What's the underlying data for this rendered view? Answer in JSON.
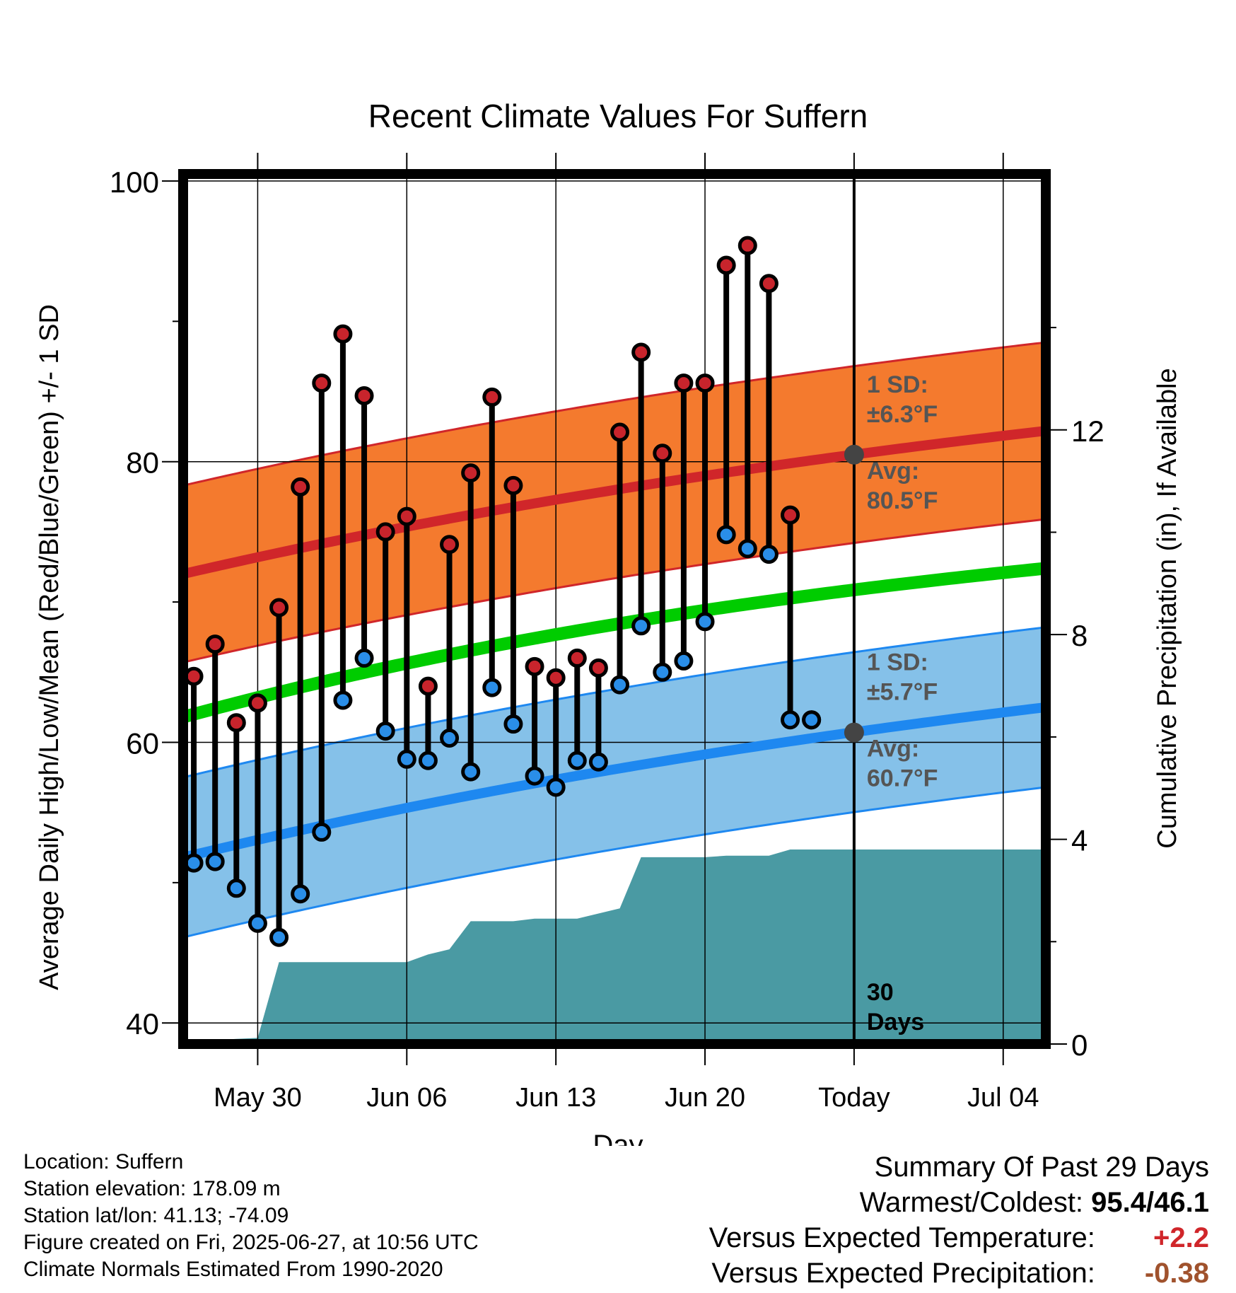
{
  "chart_data": {
    "type": "line",
    "title": "Recent Climate Values For Suffern",
    "xlabel": "Day",
    "ylabel": "Average Daily High/Low/Mean (Red/Blue/Green) +/- 1 SD",
    "y2label": "Cumulative Precipitation (in), If Available",
    "ylim": [
      38.5,
      100.5
    ],
    "y_ticks": [
      40,
      60,
      80,
      100
    ],
    "y2lim": [
      0,
      17
    ],
    "y2_ticks": [
      0,
      4,
      8,
      12
    ],
    "x_tick_labels": [
      "May 30",
      "Jun 06",
      "Jun 13",
      "Jun 20",
      "Today",
      "Jul 04"
    ],
    "x_tick_days": [
      4,
      11,
      18,
      25,
      32,
      39
    ],
    "xlim": [
      0.5,
      41
    ],
    "today_day": 32,
    "grid": true,
    "days_label": "30",
    "days_label2": "Days",
    "highs": [
      64.7,
      67.0,
      61.4,
      62.8,
      69.6,
      78.2,
      85.6,
      89.1,
      84.7,
      75.0,
      76.1,
      64.0,
      74.1,
      79.2,
      84.6,
      78.3,
      65.4,
      64.6,
      66.0,
      65.3,
      82.1,
      87.8,
      80.6,
      85.6,
      85.6,
      94.0,
      95.4,
      92.7,
      76.2,
      61.6
    ],
    "lows": [
      51.4,
      51.5,
      49.6,
      47.1,
      46.1,
      49.2,
      53.6,
      63.0,
      66.0,
      60.8,
      58.8,
      58.7,
      60.3,
      57.9,
      63.9,
      61.3,
      57.6,
      56.8,
      58.7,
      58.6,
      64.1,
      68.3,
      65.0,
      65.8,
      68.6,
      74.8,
      73.8,
      73.4,
      61.6,
      61.6
    ],
    "normal_high": {
      "start": 72.0,
      "today": 80.5,
      "end": 82.2,
      "sd": 6.3
    },
    "normal_low": {
      "start": 51.8,
      "today": 60.7,
      "end": 62.5,
      "sd": 5.7
    },
    "normal_mean": {
      "start": 61.8,
      "today": 70.9,
      "end": 72.4
    },
    "precip_cumulative": {
      "x": [
        1,
        3,
        4,
        5,
        6,
        7,
        8,
        9,
        10,
        11,
        12,
        13,
        14,
        15,
        16,
        17,
        18,
        19,
        20,
        21,
        22,
        23,
        24,
        25,
        26,
        27,
        28,
        29,
        30,
        31,
        32,
        40.9
      ],
      "values": [
        0.05,
        0.1,
        0.12,
        1.6,
        1.6,
        1.6,
        1.6,
        1.6,
        1.6,
        1.6,
        1.75,
        1.85,
        2.4,
        2.4,
        2.4,
        2.45,
        2.45,
        2.45,
        2.55,
        2.65,
        3.65,
        3.65,
        3.65,
        3.65,
        3.68,
        3.68,
        3.68,
        3.8,
        3.8,
        3.8,
        3.8,
        3.8
      ]
    },
    "annotations": {
      "high_sd": "1 SD:",
      "high_sd_value": "±6.3°F",
      "high_avg": "Avg:",
      "high_avg_value": "80.5°F",
      "low_sd": "1 SD:",
      "low_sd_value": "±5.7°F",
      "low_avg": "Avg:",
      "low_avg_value": "60.7°F"
    },
    "colors": {
      "high_band": "#f47a2e",
      "high_line": "#d0262a",
      "low_band": "#85c1e9",
      "low_line": "#1e88f0",
      "mean_line": "#00cc00",
      "precip": "#4a9aa3",
      "high_dot": "#c8242c",
      "low_dot": "#2a8ee8",
      "avg_dot": "#444444",
      "anno_text": "#555555"
    }
  },
  "footer": {
    "location": "Location: Suffern",
    "elevation": "Station elevation: 178.09 m",
    "latlon": "Station lat/lon: 41.13; -74.09",
    "created": "Figure created on Fri, 2025-06-27, at 10:56 UTC",
    "normals": "Climate Normals Estimated From 1990-2020"
  },
  "summary": {
    "title": "Summary Of Past 29 Days",
    "warmest_label": "Warmest/Coldest:",
    "warmest_value": "95.4/46.1",
    "temp_label": "Versus Expected Temperature:",
    "temp_value": "+2.2",
    "temp_color": "#d0262a",
    "precip_label": "Versus Expected Precipitation:",
    "precip_value": "-0.38",
    "precip_color": "#a0522d"
  }
}
